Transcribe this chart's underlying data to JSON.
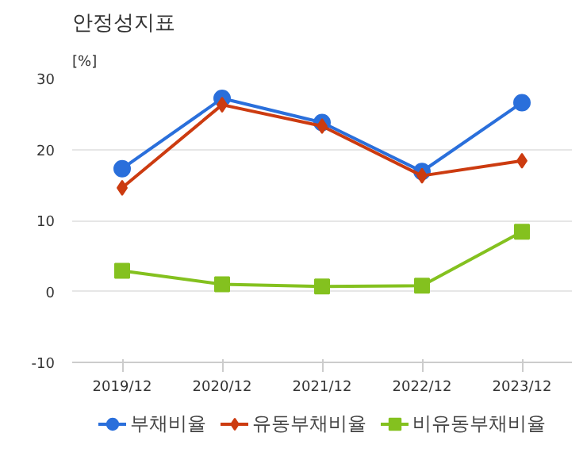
{
  "chart_data": {
    "type": "line",
    "title": "안정성지표",
    "ylabel": "[%]",
    "categories": [
      "2019/12",
      "2020/12",
      "2021/12",
      "2022/12",
      "2023/12"
    ],
    "series": [
      {
        "name": "부채비율",
        "color": "#2a6fdb",
        "marker": "circle",
        "values": [
          17.3,
          27.2,
          23.8,
          16.9,
          26.6
        ]
      },
      {
        "name": "유동부채비율",
        "color": "#cc3b10",
        "marker": "diamond",
        "values": [
          14.6,
          26.3,
          23.3,
          16.3,
          18.4
        ]
      },
      {
        "name": "비유동부채비율",
        "color": "#84c11f",
        "marker": "square",
        "values": [
          2.9,
          1.0,
          0.7,
          0.8,
          8.4
        ]
      }
    ],
    "ylim": [
      -10,
      30
    ],
    "yticks": [
      -10,
      0,
      10,
      20,
      30
    ],
    "grid": "y",
    "legend": "bottom"
  }
}
